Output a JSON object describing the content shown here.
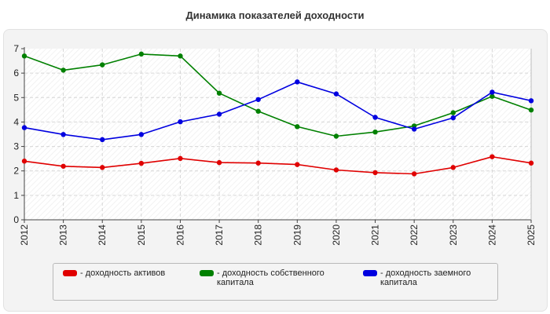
{
  "title": "Динамика показателей доходности",
  "chart_data": {
    "type": "line",
    "title": "Динамика показателей доходности",
    "xlabel": "",
    "ylabel": "",
    "x": [
      "2012",
      "2013",
      "2014",
      "2015",
      "2016",
      "2017",
      "2018",
      "2019",
      "2020",
      "2021",
      "2022",
      "2023",
      "2024",
      "2025"
    ],
    "ylim": [
      0,
      7
    ],
    "yticks": [
      "0",
      "1",
      "2",
      "3",
      "4",
      "5",
      "6",
      "7"
    ],
    "grid": true,
    "legend_position": "bottom",
    "series": [
      {
        "name": "- доходность активов",
        "color": "#e00000",
        "values": [
          2.4,
          2.19,
          2.14,
          2.31,
          2.51,
          2.34,
          2.32,
          2.26,
          2.04,
          1.93,
          1.88,
          2.14,
          2.58,
          2.32
        ]
      },
      {
        "name": "- доходность собственного капитала",
        "color": "#008000",
        "values": [
          6.7,
          6.12,
          6.34,
          6.78,
          6.7,
          5.18,
          4.44,
          3.81,
          3.42,
          3.59,
          3.84,
          4.38,
          5.05,
          4.49
        ]
      },
      {
        "name": "- доходность заемного капитала",
        "color": "#0000e0",
        "values": [
          3.77,
          3.49,
          3.28,
          3.49,
          4.01,
          4.32,
          4.92,
          5.64,
          5.15,
          4.19,
          3.71,
          4.17,
          5.22,
          4.87
        ]
      }
    ]
  }
}
